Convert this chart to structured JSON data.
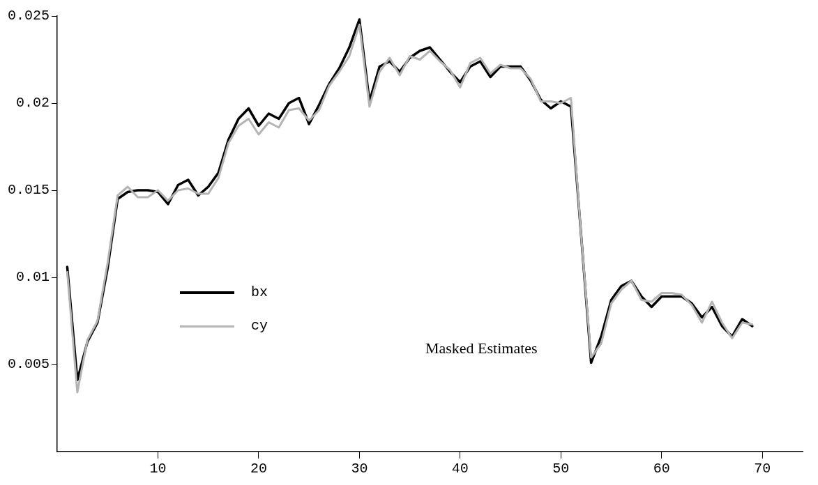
{
  "chart_data": {
    "type": "line",
    "x": [
      1,
      2,
      3,
      4,
      5,
      6,
      7,
      8,
      9,
      10,
      11,
      12,
      13,
      14,
      15,
      16,
      17,
      18,
      19,
      20,
      21,
      22,
      23,
      24,
      25,
      26,
      27,
      28,
      29,
      30,
      31,
      32,
      33,
      34,
      35,
      36,
      37,
      38,
      39,
      40,
      41,
      42,
      43,
      44,
      45,
      46,
      47,
      48,
      49,
      50,
      51,
      52,
      53,
      54,
      55,
      56,
      57,
      58,
      59,
      60,
      61,
      62,
      63,
      64,
      65,
      66,
      67,
      68,
      69
    ],
    "series": [
      {
        "name": "bx",
        "color": "#000000",
        "values": [
          0.0106,
          0.0041,
          0.0063,
          0.0074,
          0.0105,
          0.0145,
          0.0149,
          0.015,
          0.015,
          0.0149,
          0.0142,
          0.0153,
          0.0156,
          0.0147,
          0.0152,
          0.016,
          0.0179,
          0.0191,
          0.0197,
          0.0187,
          0.0194,
          0.0191,
          0.02,
          0.0203,
          0.0188,
          0.0199,
          0.0211,
          0.022,
          0.0232,
          0.0248,
          0.0201,
          0.0221,
          0.0224,
          0.0218,
          0.0226,
          0.023,
          0.0232,
          0.0225,
          0.0218,
          0.0212,
          0.0221,
          0.0224,
          0.0215,
          0.0221,
          0.0221,
          0.0221,
          0.0213,
          0.0202,
          0.0197,
          0.0201,
          0.0198,
          0.0125,
          0.0051,
          0.0066,
          0.0087,
          0.0095,
          0.0098,
          0.0089,
          0.0083,
          0.0089,
          0.0089,
          0.0089,
          0.0085,
          0.0077,
          0.0083,
          0.0072,
          0.0066,
          0.0076,
          0.0072
        ]
      },
      {
        "name": "cy",
        "color": "#b4b4b4",
        "values": [
          0.0103,
          0.0034,
          0.0064,
          0.0075,
          0.0108,
          0.0147,
          0.0152,
          0.0146,
          0.0146,
          0.015,
          0.0144,
          0.015,
          0.0151,
          0.0148,
          0.0148,
          0.0157,
          0.0177,
          0.0187,
          0.0191,
          0.0182,
          0.0189,
          0.0186,
          0.0196,
          0.0197,
          0.019,
          0.0196,
          0.021,
          0.0218,
          0.0227,
          0.0245,
          0.0198,
          0.0218,
          0.0226,
          0.0216,
          0.0227,
          0.0225,
          0.023,
          0.0224,
          0.0219,
          0.0209,
          0.0223,
          0.0226,
          0.0217,
          0.0222,
          0.022,
          0.022,
          0.0214,
          0.0201,
          0.0201,
          0.02,
          0.0203,
          0.0125,
          0.0054,
          0.0062,
          0.0085,
          0.0093,
          0.0098,
          0.0087,
          0.0086,
          0.0091,
          0.0091,
          0.009,
          0.0084,
          0.0074,
          0.0086,
          0.0074,
          0.0065,
          0.0074,
          0.0073
        ]
      }
    ],
    "xlim": [
      0,
      74
    ],
    "xticks": [
      10,
      20,
      30,
      40,
      50,
      60,
      70
    ],
    "ylim": [
      0,
      0.025
    ],
    "yticks": [
      0.005,
      0.01,
      0.015,
      0.02,
      0.025
    ],
    "annotations": [
      "Masked Estimates"
    ],
    "legend": "left",
    "grid": false,
    "marker": "none",
    "line_style": "solid"
  }
}
